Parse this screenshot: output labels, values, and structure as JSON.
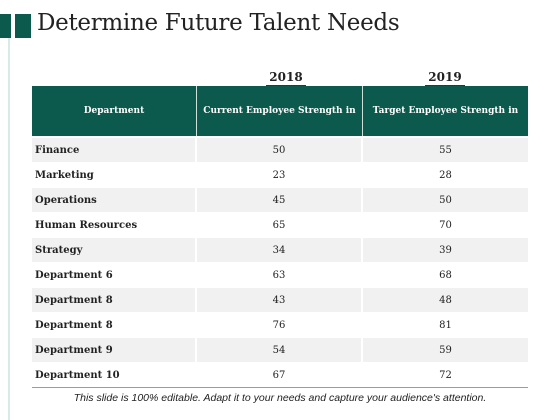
{
  "title": "Determine Future Talent Needs",
  "years": [
    "2018",
    "2019"
  ],
  "headers": [
    "Department",
    "Current Employee Strength in",
    "Target Employee Strength in"
  ],
  "rows": [
    {
      "department": "Finance",
      "current": "50",
      "target": "55"
    },
    {
      "department": "Marketing",
      "current": "23",
      "target": "28"
    },
    {
      "department": "Operations",
      "current": "45",
      "target": "50"
    },
    {
      "department": "Human Resources",
      "current": "65",
      "target": "70"
    },
    {
      "department": "Strategy",
      "current": "34",
      "target": "39"
    },
    {
      "department": "Department 6",
      "current": "63",
      "target": "68"
    },
    {
      "department": "Department 8",
      "current": "43",
      "target": "48"
    },
    {
      "department": "Department 8",
      "current": "76",
      "target": "81"
    },
    {
      "department": "Department 9",
      "current": "54",
      "target": "59"
    },
    {
      "department": "Department 10",
      "current": "67",
      "target": "72"
    }
  ],
  "footer": "This slide is 100% editable. Adapt it to your needs and capture your audience's attention.",
  "colors": {
    "accent": "#0b5a4d",
    "row_shade": "#f1f1f1"
  }
}
